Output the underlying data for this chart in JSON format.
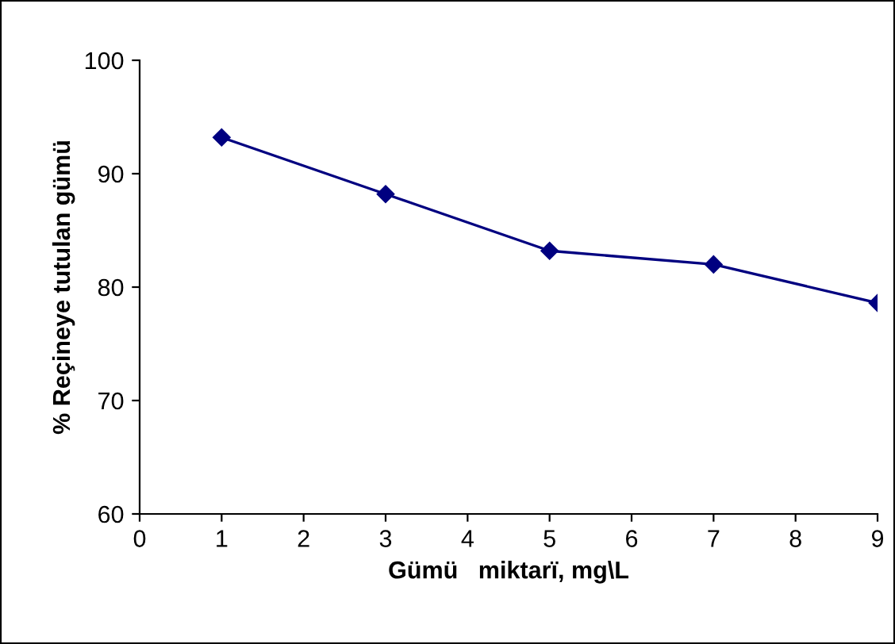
{
  "chart_data": {
    "type": "line",
    "xlabel": "Gümü   miktarï, mg\\L",
    "ylabel": "% Reçineye tutulan gümü",
    "x": [
      1,
      3,
      5,
      7,
      9
    ],
    "series": [
      {
        "color": "#000080",
        "values": [
          93.2,
          88.2,
          83.2,
          82.0,
          78.6
        ]
      }
    ],
    "xlim": [
      0,
      9
    ],
    "xticks": [
      0,
      1,
      2,
      3,
      4,
      5,
      6,
      7,
      8,
      9
    ],
    "ylim": [
      60,
      100
    ],
    "yticks": [
      60,
      70,
      80,
      90,
      100
    ],
    "grid": false,
    "legend": false,
    "marker": "diamond",
    "line_style": "solid"
  }
}
